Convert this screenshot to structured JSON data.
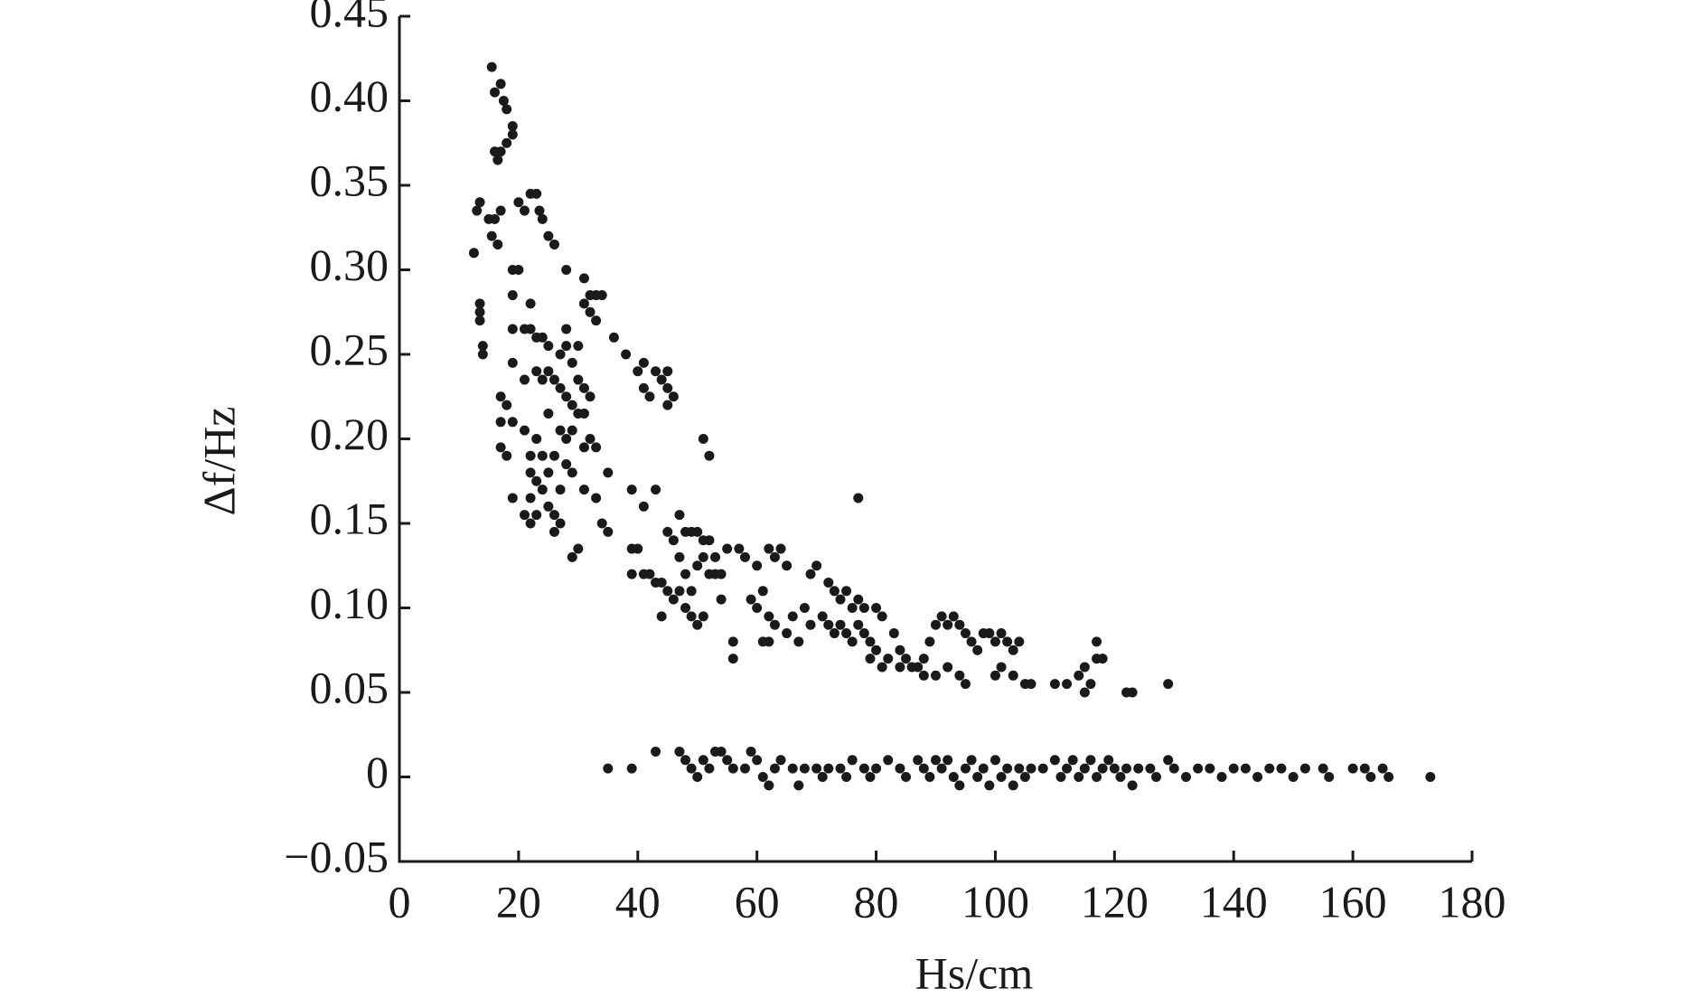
{
  "chart_data": {
    "type": "scatter",
    "x_label": "Hs/cm",
    "y_label": "Δf/Hz",
    "xlim": [
      0,
      180
    ],
    "xticks": [
      0,
      20,
      40,
      60,
      80,
      100,
      120,
      140,
      160,
      180
    ],
    "ylim": [
      -0.05,
      0.45
    ],
    "yticks": [
      {
        "value": -0.05,
        "label": "−0.05"
      },
      0,
      0.05,
      {
        "value": 0.1,
        "label": "0.10"
      },
      0.15,
      {
        "value": 0.2,
        "label": "0.20"
      },
      0.25,
      {
        "value": 0.3,
        "label": "0.30"
      },
      0.35,
      {
        "value": 0.4,
        "label": "0.40"
      },
      0.45
    ],
    "color": "#1a1a1a",
    "x": [
      15.5,
      16,
      17,
      17.5,
      18,
      19,
      19,
      18,
      17,
      16,
      16.5,
      13,
      13.5,
      12.5,
      15,
      16,
      17,
      15.5,
      16.5,
      20,
      21,
      22,
      23,
      23.5,
      24,
      25,
      26,
      19,
      20,
      28,
      31,
      32,
      33,
      34,
      31,
      32,
      33,
      13.5,
      13.5,
      13.5,
      19,
      22,
      14,
      14,
      19,
      21,
      22,
      23,
      24,
      25,
      28,
      28,
      30,
      27,
      29,
      36,
      38,
      40,
      41,
      43,
      45,
      44,
      41,
      42,
      45,
      46,
      45,
      17,
      18,
      19,
      21,
      23,
      24,
      25,
      26,
      27,
      28,
      29,
      30,
      31,
      30,
      31,
      32,
      17,
      19,
      21,
      23,
      25,
      27,
      28,
      29,
      31,
      32,
      33,
      17,
      18,
      22,
      24,
      26,
      28,
      22,
      23,
      25,
      27,
      29,
      31,
      35,
      51,
      52,
      19,
      22,
      24,
      33,
      39,
      43,
      21,
      22,
      23,
      25,
      26,
      27,
      26,
      29,
      30,
      34,
      35,
      41,
      47,
      77,
      39,
      40,
      39,
      41,
      42,
      43,
      44,
      45,
      44,
      45,
      46,
      47,
      48,
      49,
      50,
      51,
      52,
      53,
      48,
      49,
      50,
      51,
      52,
      53,
      54,
      46,
      47,
      48,
      49,
      50,
      51,
      54,
      55,
      57,
      58,
      60,
      62,
      63,
      64,
      65,
      61,
      59,
      60,
      62,
      63,
      66,
      68,
      69,
      70,
      72,
      73,
      74,
      75,
      76,
      77,
      78,
      56,
      56,
      61,
      62,
      65,
      67,
      69,
      71,
      72,
      73,
      74,
      75,
      76,
      77,
      78,
      79,
      80,
      81,
      80,
      82,
      83,
      84,
      85,
      86,
      87,
      88,
      89,
      90,
      91,
      92,
      93,
      94,
      95,
      96,
      97,
      98,
      99,
      100,
      101,
      102,
      103,
      104,
      79,
      81,
      84,
      88,
      90,
      92,
      94,
      95,
      100,
      101,
      103,
      105,
      106,
      110,
      112,
      114,
      115,
      116,
      115,
      117,
      118,
      117,
      122,
      123,
      129,
      35,
      39,
      43,
      47,
      48,
      49,
      50,
      51,
      52,
      53,
      54,
      55,
      56,
      58,
      59,
      60,
      61,
      62,
      63,
      64,
      66,
      67,
      68,
      70,
      71,
      72,
      74,
      75,
      76,
      78,
      79,
      80,
      82,
      84,
      85,
      87,
      88,
      89,
      90,
      91,
      92,
      93,
      94,
      95,
      96,
      97,
      98,
      99,
      100,
      101,
      102,
      103,
      104,
      105,
      106,
      108,
      110,
      111,
      112,
      113,
      114,
      115,
      116,
      117,
      118,
      119,
      120,
      121,
      122,
      123,
      124,
      126,
      127,
      129,
      130,
      132,
      134,
      136,
      138,
      140,
      142,
      144,
      146,
      148,
      150,
      152,
      155,
      156,
      160,
      162,
      163,
      165,
      166,
      173
    ],
    "values": [
      0.42,
      0.405,
      0.41,
      0.4,
      0.395,
      0.385,
      0.38,
      0.375,
      0.37,
      0.37,
      0.365,
      0.335,
      0.34,
      0.31,
      0.33,
      0.33,
      0.335,
      0.32,
      0.315,
      0.34,
      0.335,
      0.345,
      0.345,
      0.335,
      0.33,
      0.32,
      0.315,
      0.3,
      0.3,
      0.3,
      0.295,
      0.285,
      0.285,
      0.285,
      0.28,
      0.275,
      0.27,
      0.28,
      0.275,
      0.27,
      0.285,
      0.28,
      0.255,
      0.25,
      0.265,
      0.265,
      0.265,
      0.26,
      0.26,
      0.255,
      0.265,
      0.255,
      0.255,
      0.25,
      0.245,
      0.26,
      0.25,
      0.24,
      0.245,
      0.24,
      0.24,
      0.235,
      0.23,
      0.225,
      0.23,
      0.225,
      0.22,
      0.225,
      0.22,
      0.245,
      0.235,
      0.24,
      0.235,
      0.24,
      0.235,
      0.23,
      0.225,
      0.22,
      0.215,
      0.215,
      0.235,
      0.23,
      0.225,
      0.21,
      0.21,
      0.205,
      0.2,
      0.215,
      0.205,
      0.2,
      0.205,
      0.195,
      0.2,
      0.195,
      0.195,
      0.19,
      0.19,
      0.19,
      0.19,
      0.185,
      0.18,
      0.175,
      0.18,
      0.17,
      0.18,
      0.17,
      0.18,
      0.2,
      0.19,
      0.165,
      0.165,
      0.17,
      0.165,
      0.17,
      0.17,
      0.155,
      0.15,
      0.155,
      0.16,
      0.155,
      0.15,
      0.145,
      0.13,
      0.135,
      0.15,
      0.145,
      0.16,
      0.155,
      0.165,
      0.135,
      0.135,
      0.12,
      0.12,
      0.12,
      0.115,
      0.115,
      0.11,
      0.095,
      0.145,
      0.14,
      0.13,
      0.145,
      0.145,
      0.145,
      0.14,
      0.14,
      0.13,
      0.12,
      0.11,
      0.125,
      0.13,
      0.12,
      0.12,
      0.12,
      0.105,
      0.11,
      0.1,
      0.095,
      0.09,
      0.095,
      0.105,
      0.135,
      0.135,
      0.13,
      0.125,
      0.135,
      0.13,
      0.135,
      0.125,
      0.11,
      0.105,
      0.1,
      0.095,
      0.09,
      0.095,
      0.1,
      0.12,
      0.125,
      0.115,
      0.11,
      0.105,
      0.11,
      0.1,
      0.105,
      0.1,
      0.08,
      0.07,
      0.08,
      0.08,
      0.085,
      0.08,
      0.09,
      0.095,
      0.09,
      0.085,
      0.09,
      0.085,
      0.08,
      0.09,
      0.085,
      0.08,
      0.1,
      0.095,
      0.075,
      0.07,
      0.085,
      0.075,
      0.07,
      0.065,
      0.065,
      0.07,
      0.08,
      0.09,
      0.095,
      0.09,
      0.095,
      0.09,
      0.085,
      0.08,
      0.075,
      0.085,
      0.085,
      0.08,
      0.085,
      0.08,
      0.075,
      0.08,
      0.07,
      0.065,
      0.065,
      0.06,
      0.06,
      0.065,
      0.06,
      0.055,
      0.06,
      0.065,
      0.06,
      0.055,
      0.055,
      0.055,
      0.055,
      0.06,
      0.05,
      0.055,
      0.065,
      0.08,
      0.07,
      0.07,
      0.05,
      0.05,
      0.055,
      0.005,
      0.005,
      0.015,
      0.015,
      0.01,
      0.005,
      0,
      0.01,
      0.005,
      0.015,
      0.015,
      0.01,
      0.005,
      0.005,
      0.015,
      0.01,
      0,
      -0.005,
      0.005,
      0.01,
      0.005,
      -0.005,
      0.005,
      0.005,
      0,
      0.005,
      0.005,
      0,
      0.01,
      0.005,
      0,
      0.005,
      0.01,
      0.005,
      0,
      0.01,
      0.005,
      0,
      0.01,
      0.005,
      0.01,
      0,
      -0.005,
      0.005,
      0.01,
      0,
      0.005,
      -0.005,
      0.01,
      0,
      0.005,
      -0.005,
      0.005,
      0,
      0.005,
      0.005,
      0.01,
      0,
      0.005,
      0.01,
      0,
      0.005,
      0.01,
      0,
      0.005,
      0.01,
      0.005,
      0,
      0.005,
      -0.005,
      0.005,
      0.005,
      0,
      0.01,
      0.005,
      0,
      0.005,
      0.005,
      0,
      0.005,
      0.005,
      0,
      0.005,
      0.005,
      0,
      0.005,
      0.005,
      0,
      0.005,
      0.005,
      0,
      0.005,
      0,
      0
    ]
  }
}
